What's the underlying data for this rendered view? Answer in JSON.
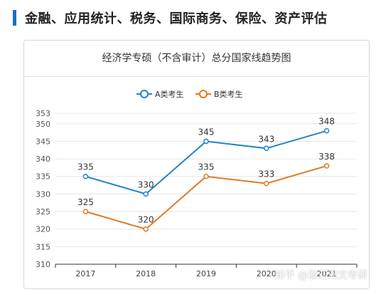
{
  "section": {
    "title": "金融、应用统计、税务、国际商务、保险、资产评估",
    "accent": "#1a6fc9"
  },
  "watermark": "知乎 @浙江海文考研",
  "chart_data": {
    "type": "line",
    "title": "经济学专硕（不含审计）总分国家线趋势图",
    "categories": [
      "2017",
      "2018",
      "2019",
      "2020",
      "2021"
    ],
    "series": [
      {
        "name": "A类考生",
        "color": "#1f86c8",
        "values": [
          335,
          330,
          345,
          343,
          348
        ]
      },
      {
        "name": "B类考生",
        "color": "#e07a22",
        "values": [
          325,
          320,
          335,
          333,
          338
        ]
      }
    ],
    "yticks": [
      "310",
      "315",
      "320",
      "325",
      "330",
      "335",
      "340",
      "345",
      "350",
      "353"
    ],
    "ylim": [
      310,
      353
    ],
    "legend_position": "top-center",
    "grid": true
  }
}
